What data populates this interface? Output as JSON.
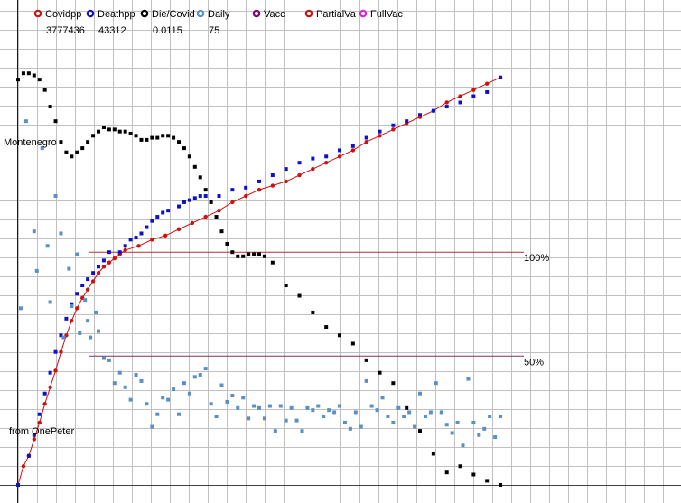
{
  "colors": {
    "background": "#ffffff",
    "grid": "#c0c0c0",
    "axis": "#0000c8",
    "covidpp": "#d01010",
    "deathpp": "#1010c8",
    "diecovid": "#000000",
    "daily": "#5a90c8",
    "vacc": "#800080",
    "partialva": "#d01010",
    "fullvac": "#e020e0",
    "line100": "#b03030",
    "line50": "#803060"
  },
  "legend": {
    "items": [
      {
        "label": "Covidpp",
        "value": "3777436",
        "color": "#d01010",
        "icon": "circle-icon"
      },
      {
        "label": "Deathpp",
        "value": "43312",
        "color": "#1010c8",
        "icon": "circle-icon"
      },
      {
        "label": "Die/Covid",
        "value": "0.0115",
        "color": "#000000",
        "icon": "circle-icon"
      },
      {
        "label": "Daily",
        "value": "75",
        "color": "#5a90c8",
        "icon": "circle-icon"
      },
      {
        "label": "Vacc",
        "value": "",
        "color": "#800080",
        "icon": "circle-icon"
      },
      {
        "label": "PartialVa",
        "value": "",
        "color": "#d01010",
        "icon": "circle-icon"
      },
      {
        "label": "FullVac",
        "value": "",
        "color": "#e020e0",
        "icon": "circle-icon"
      }
    ]
  },
  "annotations": {
    "country": "Montenegro",
    "credit": "from OnePeter",
    "ref100": "100%",
    "ref50": "50%"
  },
  "chart_data": {
    "type": "scatter",
    "x_unit": "day index",
    "y_unit": "percent of own maximum (100% line)",
    "xlim": [
      0,
      181
    ],
    "ylim": [
      -12,
      200
    ],
    "grid": true,
    "reference_lines": [
      {
        "y": 100,
        "label": "100%"
      },
      {
        "y": 50,
        "label": "50%"
      }
    ],
    "series": [
      {
        "name": "Covidpp",
        "style": "line-dots",
        "points": [
          [
            0,
            -12
          ],
          [
            2,
            -3
          ],
          [
            4,
            2
          ],
          [
            6,
            10
          ],
          [
            8,
            18
          ],
          [
            10,
            27
          ],
          [
            12,
            35
          ],
          [
            14,
            43
          ],
          [
            16,
            52
          ],
          [
            18,
            60
          ],
          [
            20,
            67
          ],
          [
            22,
            73
          ],
          [
            24,
            78
          ],
          [
            26,
            82
          ],
          [
            28,
            86
          ],
          [
            30,
            90
          ],
          [
            32,
            93
          ],
          [
            34,
            95
          ],
          [
            36,
            97
          ],
          [
            38,
            99
          ],
          [
            40,
            101
          ],
          [
            45,
            103
          ],
          [
            50,
            106
          ],
          [
            55,
            108
          ],
          [
            60,
            111
          ],
          [
            65,
            114
          ],
          [
            70,
            117
          ],
          [
            75,
            120
          ],
          [
            80,
            124
          ],
          [
            85,
            127
          ],
          [
            90,
            130
          ],
          [
            95,
            132
          ],
          [
            100,
            134
          ],
          [
            105,
            137
          ],
          [
            110,
            140
          ],
          [
            115,
            143
          ],
          [
            120,
            146
          ],
          [
            125,
            149
          ],
          [
            130,
            153
          ],
          [
            135,
            156
          ],
          [
            140,
            159
          ],
          [
            145,
            162
          ],
          [
            150,
            165
          ],
          [
            155,
            168
          ],
          [
            160,
            172
          ],
          [
            165,
            175
          ],
          [
            170,
            178
          ],
          [
            175,
            181
          ],
          [
            180,
            184
          ]
        ]
      },
      {
        "name": "Deathpp",
        "style": "dots",
        "points": [
          [
            0,
            -12
          ],
          [
            4,
            2
          ],
          [
            6,
            12
          ],
          [
            8,
            22
          ],
          [
            10,
            32
          ],
          [
            12,
            42
          ],
          [
            14,
            52
          ],
          [
            16,
            60
          ],
          [
            18,
            68
          ],
          [
            20,
            75
          ],
          [
            22,
            80
          ],
          [
            24,
            84
          ],
          [
            26,
            87
          ],
          [
            28,
            90
          ],
          [
            30,
            93
          ],
          [
            32,
            96
          ],
          [
            34,
            100
          ],
          [
            38,
            100
          ],
          [
            40,
            103
          ],
          [
            42,
            106
          ],
          [
            44,
            107
          ],
          [
            46,
            109
          ],
          [
            48,
            112
          ],
          [
            50,
            115
          ],
          [
            52,
            117
          ],
          [
            54,
            119
          ],
          [
            56,
            120
          ],
          [
            60,
            122
          ],
          [
            62,
            124
          ],
          [
            64,
            125
          ],
          [
            66,
            126
          ],
          [
            68,
            127
          ],
          [
            70,
            127
          ],
          [
            75,
            127
          ],
          [
            80,
            130
          ],
          [
            85,
            131
          ],
          [
            90,
            134
          ],
          [
            95,
            137
          ],
          [
            100,
            140
          ],
          [
            105,
            143
          ],
          [
            110,
            145
          ],
          [
            115,
            146
          ],
          [
            120,
            149
          ],
          [
            125,
            151
          ],
          [
            130,
            155
          ],
          [
            135,
            158
          ],
          [
            140,
            161
          ],
          [
            145,
            163
          ],
          [
            150,
            166
          ],
          [
            155,
            168
          ],
          [
            160,
            170
          ],
          [
            165,
            172
          ],
          [
            170,
            175
          ],
          [
            175,
            177
          ],
          [
            180,
            184
          ]
        ]
      },
      {
        "name": "Die/Covid",
        "style": "dots",
        "points": [
          [
            0,
            183
          ],
          [
            2,
            186
          ],
          [
            4,
            186
          ],
          [
            6,
            185
          ],
          [
            8,
            183
          ],
          [
            10,
            178
          ],
          [
            12,
            170
          ],
          [
            14,
            163
          ],
          [
            16,
            153
          ],
          [
            18,
            148
          ],
          [
            20,
            146
          ],
          [
            22,
            148
          ],
          [
            24,
            150
          ],
          [
            26,
            153
          ],
          [
            28,
            156
          ],
          [
            30,
            158
          ],
          [
            32,
            160
          ],
          [
            34,
            159
          ],
          [
            36,
            159
          ],
          [
            38,
            158
          ],
          [
            40,
            158
          ],
          [
            42,
            157
          ],
          [
            44,
            156
          ],
          [
            46,
            154
          ],
          [
            48,
            154
          ],
          [
            50,
            155
          ],
          [
            52,
            155
          ],
          [
            54,
            156
          ],
          [
            56,
            156
          ],
          [
            58,
            155
          ],
          [
            60,
            153
          ],
          [
            62,
            150
          ],
          [
            64,
            146
          ],
          [
            66,
            141
          ],
          [
            68,
            136
          ],
          [
            70,
            130
          ],
          [
            72,
            124
          ],
          [
            74,
            117
          ],
          [
            76,
            110
          ],
          [
            78,
            104
          ],
          [
            80,
            100
          ],
          [
            82,
            98
          ],
          [
            84,
            98
          ],
          [
            86,
            99
          ],
          [
            88,
            99
          ],
          [
            90,
            99
          ],
          [
            92,
            98
          ],
          [
            95,
            95
          ],
          [
            100,
            84
          ],
          [
            105,
            79
          ],
          [
            110,
            71
          ],
          [
            115,
            64
          ],
          [
            120,
            60
          ],
          [
            125,
            56
          ],
          [
            130,
            48
          ],
          [
            135,
            42
          ],
          [
            140,
            37
          ],
          [
            145,
            25
          ],
          [
            150,
            14
          ],
          [
            155,
            3
          ],
          [
            160,
            -6
          ],
          [
            165,
            -3
          ],
          [
            170,
            -7
          ],
          [
            175,
            -10
          ],
          [
            180,
            -12
          ]
        ]
      },
      {
        "name": "Daily",
        "style": "dots",
        "points": [
          [
            1,
            73
          ],
          [
            3,
            163
          ],
          [
            6,
            110
          ],
          [
            7,
            91
          ],
          [
            9,
            150
          ],
          [
            11,
            103
          ],
          [
            12,
            76
          ],
          [
            14,
            127
          ],
          [
            16,
            109
          ],
          [
            17,
            59
          ],
          [
            19,
            92
          ],
          [
            20,
            74
          ],
          [
            22,
            99
          ],
          [
            23,
            61
          ],
          [
            25,
            77
          ],
          [
            26,
            67
          ],
          [
            27,
            59
          ],
          [
            29,
            71
          ],
          [
            30,
            62
          ],
          [
            32,
            49
          ],
          [
            34,
            48
          ],
          [
            36,
            37
          ],
          [
            38,
            42
          ],
          [
            40,
            35
          ],
          [
            42,
            29
          ],
          [
            44,
            41
          ],
          [
            46,
            38
          ],
          [
            48,
            27
          ],
          [
            50,
            16
          ],
          [
            52,
            22
          ],
          [
            54,
            30
          ],
          [
            56,
            29
          ],
          [
            58,
            34
          ],
          [
            60,
            22
          ],
          [
            62,
            37
          ],
          [
            64,
            32
          ],
          [
            66,
            40
          ],
          [
            68,
            41
          ],
          [
            70,
            44
          ],
          [
            72,
            27
          ],
          [
            74,
            21
          ],
          [
            76,
            36
          ],
          [
            78,
            28
          ],
          [
            80,
            31
          ],
          [
            82,
            25
          ],
          [
            84,
            30
          ],
          [
            86,
            20
          ],
          [
            88,
            26
          ],
          [
            90,
            25
          ],
          [
            92,
            20
          ],
          [
            94,
            26
          ],
          [
            96,
            14
          ],
          [
            98,
            26
          ],
          [
            100,
            19
          ],
          [
            102,
            25
          ],
          [
            104,
            19
          ],
          [
            106,
            14
          ],
          [
            108,
            25
          ],
          [
            110,
            24
          ],
          [
            112,
            26
          ],
          [
            114,
            21
          ],
          [
            116,
            24
          ],
          [
            118,
            23
          ],
          [
            120,
            26
          ],
          [
            122,
            18
          ],
          [
            124,
            15
          ],
          [
            126,
            23
          ],
          [
            128,
            16
          ],
          [
            130,
            38
          ],
          [
            132,
            26
          ],
          [
            134,
            24
          ],
          [
            136,
            30
          ],
          [
            138,
            21
          ],
          [
            140,
            18
          ],
          [
            142,
            25
          ],
          [
            144,
            21
          ],
          [
            146,
            23
          ],
          [
            148,
            16
          ],
          [
            150,
            32
          ],
          [
            152,
            21
          ],
          [
            154,
            23
          ],
          [
            156,
            37
          ],
          [
            158,
            23
          ],
          [
            160,
            17
          ],
          [
            162,
            13
          ],
          [
            164,
            18
          ],
          [
            166,
            7
          ],
          [
            168,
            39
          ],
          [
            170,
            18
          ],
          [
            172,
            12
          ],
          [
            174,
            15
          ],
          [
            176,
            21
          ],
          [
            178,
            11
          ],
          [
            180,
            21
          ]
        ]
      }
    ]
  }
}
